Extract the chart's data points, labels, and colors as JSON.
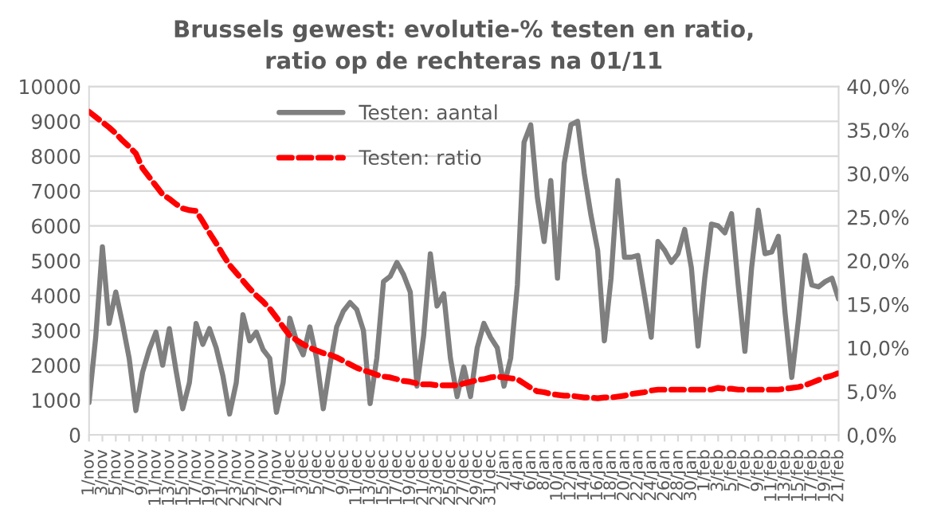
{
  "chart_data": {
    "type": "line",
    "title": "Brussels gewest: evolutie-% testen en ratio,\nratio op de rechteras na 01/11",
    "categories": [
      "1/nov",
      null,
      "3/nov",
      null,
      "5/nov",
      null,
      "7/nov",
      null,
      "9/nov",
      null,
      "11/nov",
      null,
      "13/nov",
      null,
      "15/nov",
      null,
      "17/nov",
      null,
      "19/nov",
      null,
      "21/nov",
      null,
      "23/nov",
      null,
      "25/nov",
      null,
      "27/nov",
      null,
      "29/nov",
      null,
      "1/dec",
      null,
      "3/dec",
      null,
      "5/dec",
      null,
      "7/dec",
      null,
      "9/dec",
      null,
      "11/dec",
      null,
      "13/dec",
      null,
      "15/dec",
      null,
      "17/dec",
      null,
      "19/dec",
      null,
      "21/dec",
      null,
      "23/dec",
      null,
      "25/dec",
      null,
      "27/dec",
      null,
      "29/dec",
      null,
      "31/dec",
      null,
      "2/jan",
      null,
      "4/jan",
      null,
      "6/jan",
      null,
      "8/jan",
      null,
      "10/jan",
      null,
      "12/jan",
      null,
      "14/jan",
      null,
      "16/jan",
      null,
      "18/jan",
      null,
      "20/jan",
      null,
      "22/jan",
      null,
      "24/jan",
      null,
      "26/jan",
      null,
      "28/jan",
      null,
      "30/jan",
      null,
      "1/feb",
      null,
      "3/feb",
      null,
      "5/feb",
      null,
      "7/feb",
      null,
      "9/feb",
      null,
      "11/feb",
      null,
      "13/feb",
      null,
      "15/feb",
      null,
      "17/feb",
      null,
      "19/feb",
      null,
      "21/feb"
    ],
    "series": [
      {
        "name": "Testen: aantal",
        "color": "#7f7f7f",
        "line_style": "solid",
        "values": [
          930,
          2800,
          5400,
          3200,
          4100,
          3200,
          2200,
          700,
          1800,
          2450,
          2950,
          2000,
          3050,
          1850,
          750,
          1500,
          3200,
          2600,
          3050,
          2500,
          1700,
          600,
          1500,
          3450,
          2700,
          2950,
          2450,
          2200,
          650,
          1500,
          3350,
          2700,
          2300,
          3100,
          2200,
          750,
          2000,
          3100,
          3550,
          3800,
          3600,
          3000,
          900,
          2200,
          4400,
          4550,
          4950,
          4600,
          4100,
          1400,
          2850,
          5200,
          3700,
          4050,
          2200,
          1100,
          1950,
          1100,
          2500,
          3200,
          2800,
          2500,
          1400,
          2200,
          4300,
          8400,
          8900,
          6800,
          5550,
          7300,
          4500,
          7800,
          8900,
          9000,
          7500,
          6300,
          5300,
          2700,
          4500,
          7300,
          5100,
          5100,
          5150,
          4000,
          2800,
          5550,
          5300,
          4950,
          5200,
          5900,
          4800,
          2550,
          4500,
          6050,
          6000,
          5800,
          6350,
          4300,
          2400,
          4800,
          6450,
          5200,
          5250,
          5700,
          3500,
          1650,
          3300,
          5150,
          4300,
          4250,
          4400,
          4500,
          3900
        ]
      },
      {
        "name": "Testen: ratio",
        "color": "#ff0000",
        "line_style": "dashed",
        "axis": "y2",
        "values": [
          37.1,
          36.5,
          35.9,
          35.3,
          34.6,
          33.8,
          33.1,
          32.3,
          30.6,
          29.6,
          28.6,
          27.6,
          27.1,
          26.5,
          26.0,
          25.8,
          25.7,
          24.5,
          23.2,
          22.0,
          20.7,
          19.5,
          18.6,
          17.7,
          16.8,
          16.0,
          15.3,
          14.5,
          13.5,
          12.4,
          11.4,
          10.9,
          10.4,
          10.0,
          9.7,
          9.4,
          9.2,
          8.9,
          8.5,
          8.1,
          7.7,
          7.4,
          7.2,
          6.9,
          6.7,
          6.6,
          6.4,
          6.2,
          6.1,
          5.9,
          5.8,
          5.8,
          5.7,
          5.7,
          5.7,
          5.7,
          5.9,
          6.1,
          6.3,
          6.4,
          6.6,
          6.7,
          6.6,
          6.5,
          6.4,
          5.9,
          5.4,
          5.0,
          4.9,
          4.7,
          4.6,
          4.5,
          4.5,
          4.4,
          4.3,
          4.3,
          4.2,
          4.3,
          4.3,
          4.4,
          4.5,
          4.7,
          4.8,
          4.9,
          5.1,
          5.2,
          5.2,
          5.2,
          5.2,
          5.2,
          5.2,
          5.2,
          5.2,
          5.2,
          5.4,
          5.3,
          5.3,
          5.2,
          5.2,
          5.2,
          5.2,
          5.2,
          5.2,
          5.2,
          5.3,
          5.4,
          5.5,
          5.7,
          6.0,
          6.3,
          6.6,
          6.8,
          7.1
        ]
      }
    ],
    "ylim": [
      0,
      10000
    ],
    "yticks": [
      0,
      1000,
      2000,
      3000,
      4000,
      5000,
      6000,
      7000,
      8000,
      9000,
      10000
    ],
    "y2lim": [
      0,
      40
    ],
    "y2ticks": [
      {
        "value": 0,
        "label": "0,0%"
      },
      {
        "value": 5,
        "label": "5,0%"
      },
      {
        "value": 10,
        "label": "10,0%"
      },
      {
        "value": 15,
        "label": "15,0%"
      },
      {
        "value": 20,
        "label": "20,0%"
      },
      {
        "value": 25,
        "label": "25,0%"
      },
      {
        "value": 30,
        "label": "30,0%"
      },
      {
        "value": 35,
        "label": "35,0%"
      },
      {
        "value": 40,
        "label": "40,0%"
      }
    ],
    "grid": "y",
    "legend": "top",
    "marker": "none"
  }
}
